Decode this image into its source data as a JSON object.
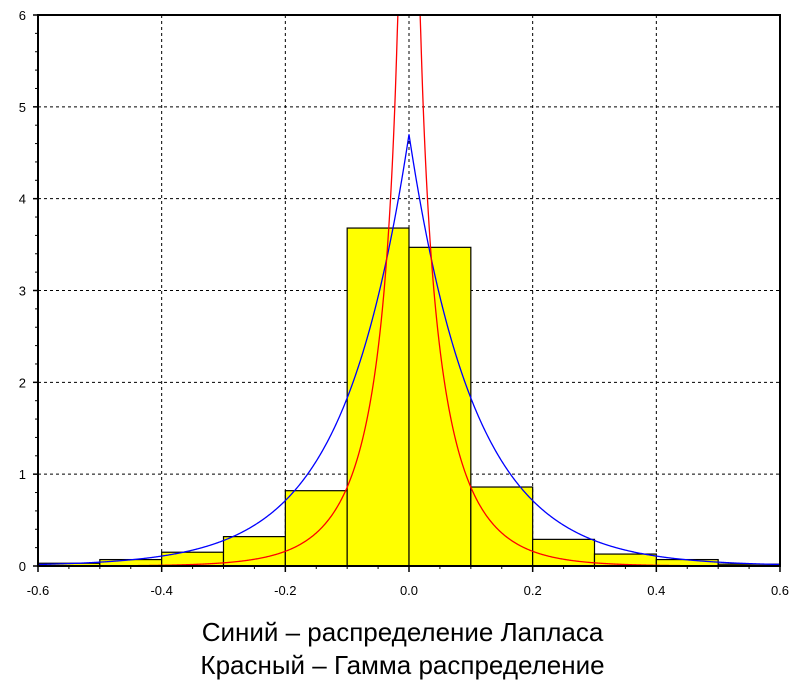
{
  "chart_data": {
    "type": "histogram",
    "xlim": [
      -0.6,
      0.6
    ],
    "ylim": [
      0,
      6
    ],
    "x_ticks": [
      "-0.6",
      "-0.4",
      "-0.2",
      "0.0",
      "0.2",
      "0.4",
      "0.6"
    ],
    "y_ticks": [
      "0",
      "1",
      "2",
      "3",
      "4",
      "5",
      "6"
    ],
    "grid": true,
    "bins": {
      "edges": [
        -0.6,
        -0.5,
        -0.4,
        -0.3,
        -0.2,
        -0.1,
        0.0,
        0.1,
        0.2,
        0.3,
        0.4,
        0.5,
        0.6
      ],
      "values": [
        0.03,
        0.07,
        0.15,
        0.32,
        0.82,
        3.68,
        3.47,
        0.86,
        0.29,
        0.13,
        0.07,
        0.02
      ]
    },
    "series": [
      {
        "color": "#0000ff",
        "model": "laplace",
        "peak": 4.7,
        "scale": 0.106
      },
      {
        "color": "#ff0000",
        "model": "gamma",
        "shape": 0.5,
        "scale": 0.075
      }
    ],
    "colors": {
      "bars": "#ffff00",
      "bar_edge": "#000000"
    }
  },
  "caption": {
    "line1": "Синий – распределение Лапласа",
    "line2": "Красный – Гамма распределение"
  }
}
